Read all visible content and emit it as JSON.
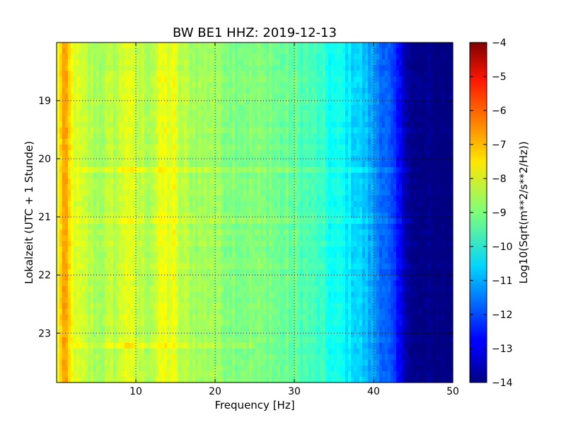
{
  "chart_data": {
    "type": "heatmap",
    "title": "BW BE1 HHZ: 2019-12-13",
    "xlabel": "Frequency [Hz]",
    "ylabel": "Lokalzeit (UTC + 1 Stunde)",
    "xlim": [
      0,
      50
    ],
    "ylim_hours": [
      18.0,
      23.85
    ],
    "y_inverted": true,
    "grid": true,
    "x_ticks": [
      10,
      20,
      30,
      40,
      50
    ],
    "y_ticks": [
      19,
      20,
      21,
      22,
      23
    ],
    "colorbar": {
      "label": "Log10(Sqrt(m**2/s**2/Hz))",
      "range": [
        -14,
        -4
      ],
      "ticks": [
        -4,
        -5,
        -6,
        -7,
        -8,
        -9,
        -10,
        -11,
        -12,
        -13,
        -14
      ],
      "colormap": "jet"
    },
    "spectral_profile": {
      "frequency_hz": [
        0,
        0.5,
        1,
        2,
        5,
        9,
        12,
        15,
        20,
        25,
        30,
        33,
        35,
        38,
        40,
        42,
        44,
        45,
        50
      ],
      "log_amplitude": [
        -8.6,
        -7.8,
        -7.5,
        -8.1,
        -8.6,
        -8.3,
        -8.5,
        -8.4,
        -8.8,
        -9.0,
        -9.3,
        -9.7,
        -10.2,
        -10.6,
        -11.2,
        -12.0,
        -13.3,
        -14.0,
        -14.0
      ]
    },
    "bright_lines_hz": [
      {
        "f": 0.9,
        "d": 0.7,
        "w": 1.6
      },
      {
        "f": 8.8,
        "d": 0.45,
        "w": 0.9
      },
      {
        "f": 13.6,
        "d": 0.55,
        "w": 1.8
      },
      {
        "f": 14.8,
        "d": 0.3,
        "w": 0.6
      },
      {
        "f": 19.6,
        "d": 0.25,
        "w": 0.8
      },
      {
        "f": 26.8,
        "d": 0.2,
        "w": 0.6
      },
      {
        "f": 35.9,
        "d": 0.2,
        "w": 0.8
      }
    ],
    "events": [
      {
        "time": 20.16,
        "f_start": 2,
        "f_end": 45,
        "delta": 0.8,
        "peak_f": 10,
        "peak_delta": 1.4
      },
      {
        "time": 21.1,
        "f_start": 2,
        "f_end": 45,
        "delta": 0.5,
        "peak_f": 10,
        "peak_delta": 0.6
      },
      {
        "time": 23.2,
        "f_start": 2,
        "f_end": 25,
        "delta": 0.5,
        "peak_f": 9,
        "peak_delta": 0.9
      }
    ]
  }
}
